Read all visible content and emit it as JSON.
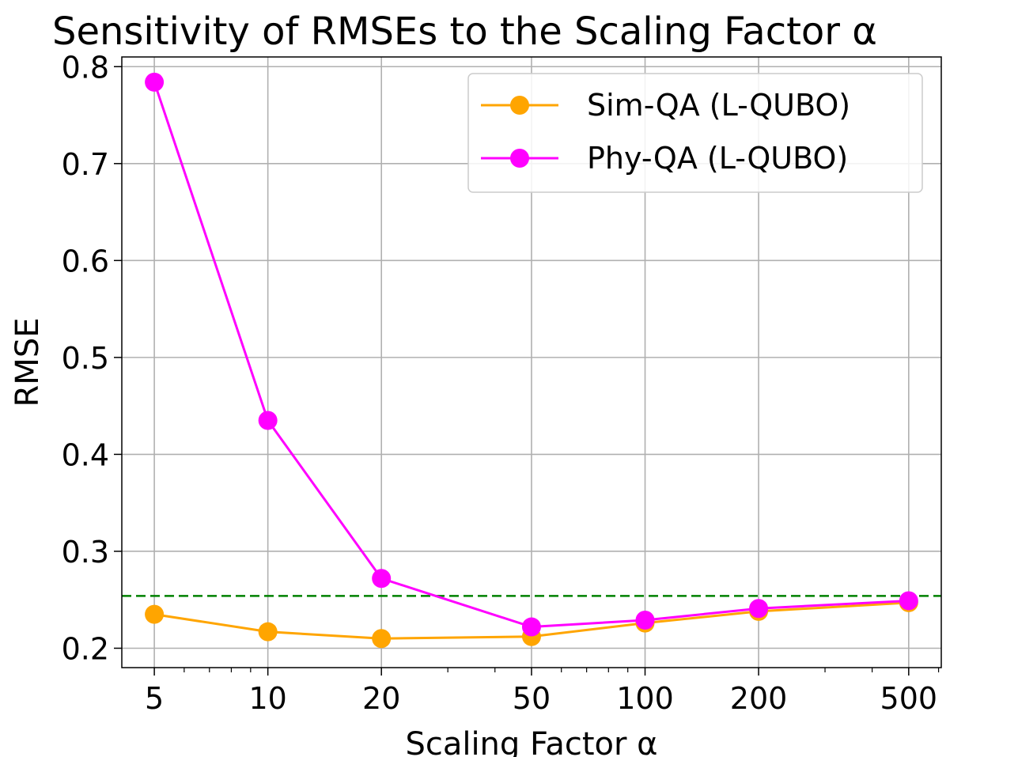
{
  "chart_data": {
    "type": "line",
    "title": "Sensitivity of RMSEs to the Scaling Factor α",
    "xlabel": "Scaling Factor α",
    "ylabel": "RMSE",
    "xscale": "log",
    "x": [
      5,
      10,
      20,
      50,
      100,
      200,
      500
    ],
    "x_tick_labels": [
      "5",
      "10",
      "20",
      "50",
      "100",
      "200",
      "500"
    ],
    "y_ticks": [
      0.2,
      0.3,
      0.4,
      0.5,
      0.6,
      0.7,
      0.8
    ],
    "y_tick_labels": [
      "0.2",
      "0.3",
      "0.4",
      "0.5",
      "0.6",
      "0.7",
      "0.8"
    ],
    "xlim": [
      4.1,
      610
    ],
    "ylim": [
      0.18,
      0.81
    ],
    "grid": true,
    "legend_position": "top-right",
    "series": [
      {
        "name": "Sim-QA (L-QUBO)",
        "color": "#ffa500",
        "values": [
          0.235,
          0.217,
          0.21,
          0.212,
          0.226,
          0.238,
          0.247
        ]
      },
      {
        "name": "Phy-QA (L-QUBO)",
        "color": "#ff00ff",
        "values": [
          0.784,
          0.435,
          0.272,
          0.222,
          0.229,
          0.241,
          0.249
        ]
      }
    ],
    "reference_line": {
      "y": 0.254,
      "color": "#008000",
      "style": "dashed"
    }
  }
}
